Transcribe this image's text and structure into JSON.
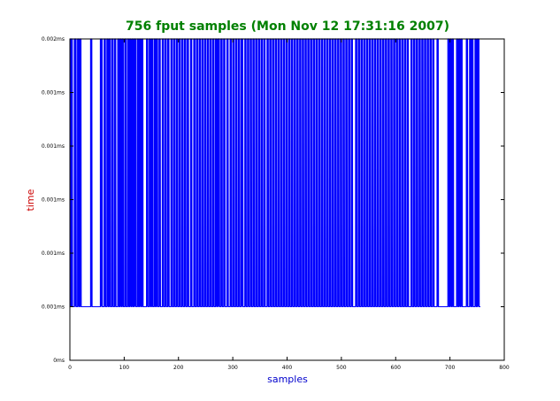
{
  "chart_data": {
    "type": "line",
    "title": "756 fput samples (Mon Nov 12 17:31:16 2007)",
    "xlabel": "samples",
    "ylabel": "time",
    "xlim": [
      0,
      800
    ],
    "ylim": [
      0,
      6
    ],
    "x_ticks": [
      0,
      100,
      200,
      300,
      400,
      500,
      600,
      700,
      800
    ],
    "x_tick_labels": [
      "0",
      "100",
      "200",
      "300",
      "400",
      "500",
      "600",
      "700",
      "800"
    ],
    "y_ticks": [
      0,
      1,
      2,
      3,
      4,
      5,
      6
    ],
    "y_tick_labels": [
      "0ms",
      "0.001ms",
      "0.001ms",
      "0.001ms",
      "0.001ms",
      "0.001ms",
      "0.002ms"
    ],
    "grid": false,
    "series": [
      {
        "x_start": 0,
        "x_end": 756,
        "values_high": 6,
        "values_low": 1,
        "high_runs": [
          [
            0,
            4
          ],
          [
            8,
            11
          ],
          [
            14,
            16
          ],
          [
            18,
            20
          ],
          [
            38,
            40
          ],
          [
            56,
            59
          ],
          [
            63,
            65
          ],
          [
            68,
            70
          ],
          [
            72,
            74
          ],
          [
            77,
            79
          ],
          [
            82,
            84
          ],
          [
            88,
            90
          ],
          [
            92,
            94
          ],
          [
            96,
            98
          ],
          [
            101,
            103
          ],
          [
            106,
            108
          ],
          [
            110,
            112
          ],
          [
            114,
            116
          ],
          [
            118,
            121
          ],
          [
            124,
            126
          ],
          [
            128,
            130
          ],
          [
            132,
            134
          ],
          [
            141,
            143
          ],
          [
            146,
            148
          ],
          [
            150,
            152
          ],
          [
            155,
            157
          ],
          [
            159,
            161
          ],
          [
            164,
            166
          ],
          [
            170,
            172
          ],
          [
            175,
            177
          ],
          [
            180,
            182
          ],
          [
            186,
            188
          ],
          [
            191,
            193
          ],
          [
            196,
            198
          ],
          [
            201,
            203
          ],
          [
            206,
            208
          ],
          [
            211,
            213
          ],
          [
            216,
            218
          ],
          [
            222,
            224
          ],
          [
            228,
            230
          ],
          [
            233,
            235
          ],
          [
            238,
            240
          ],
          [
            243,
            245
          ],
          [
            248,
            250
          ],
          [
            253,
            255
          ],
          [
            258,
            260
          ],
          [
            263,
            265
          ],
          [
            268,
            270
          ],
          [
            272,
            275
          ],
          [
            278,
            280
          ],
          [
            283,
            285
          ],
          [
            289,
            291
          ],
          [
            295,
            297
          ],
          [
            300,
            302
          ],
          [
            305,
            307
          ],
          [
            310,
            312
          ],
          [
            315,
            318
          ],
          [
            322,
            324
          ],
          [
            327,
            329
          ],
          [
            332,
            334
          ],
          [
            337,
            339
          ],
          [
            342,
            344
          ],
          [
            347,
            349
          ],
          [
            352,
            354
          ],
          [
            357,
            359
          ],
          [
            363,
            365
          ],
          [
            368,
            370
          ],
          [
            373,
            375
          ],
          [
            378,
            380
          ],
          [
            383,
            385
          ],
          [
            388,
            390
          ],
          [
            393,
            395
          ],
          [
            398,
            400
          ],
          [
            403,
            405
          ],
          [
            408,
            410
          ],
          [
            413,
            415
          ],
          [
            418,
            420
          ],
          [
            423,
            425
          ],
          [
            428,
            430
          ],
          [
            433,
            435
          ],
          [
            438,
            440
          ],
          [
            443,
            445
          ],
          [
            448,
            450
          ],
          [
            453,
            455
          ],
          [
            458,
            460
          ],
          [
            463,
            465
          ],
          [
            468,
            470
          ],
          [
            473,
            475
          ],
          [
            478,
            480
          ],
          [
            483,
            485
          ],
          [
            488,
            490
          ],
          [
            493,
            495
          ],
          [
            498,
            500
          ],
          [
            503,
            505
          ],
          [
            508,
            510
          ],
          [
            513,
            515
          ],
          [
            518,
            520
          ],
          [
            526,
            528
          ],
          [
            531,
            533
          ],
          [
            536,
            538
          ],
          [
            541,
            543
          ],
          [
            546,
            548
          ],
          [
            551,
            553
          ],
          [
            556,
            558
          ],
          [
            561,
            563
          ],
          [
            566,
            568
          ],
          [
            571,
            573
          ],
          [
            576,
            578
          ],
          [
            581,
            583
          ],
          [
            586,
            588
          ],
          [
            591,
            593
          ],
          [
            596,
            598
          ],
          [
            601,
            603
          ],
          [
            606,
            608
          ],
          [
            611,
            613
          ],
          [
            616,
            618
          ],
          [
            621,
            623
          ],
          [
            628,
            630
          ],
          [
            633,
            635
          ],
          [
            638,
            640
          ],
          [
            643,
            645
          ],
          [
            648,
            650
          ],
          [
            653,
            655
          ],
          [
            658,
            660
          ],
          [
            663,
            665
          ],
          [
            668,
            670
          ],
          [
            676,
            678
          ],
          [
            696,
            698
          ],
          [
            700,
            702
          ],
          [
            704,
            706
          ],
          [
            712,
            714
          ],
          [
            716,
            718
          ],
          [
            720,
            722
          ],
          [
            730,
            732
          ],
          [
            736,
            738
          ],
          [
            740,
            742
          ],
          [
            746,
            748
          ],
          [
            750,
            753
          ]
        ],
        "color": "#0000ff"
      }
    ],
    "colors": {
      "title": "#008000",
      "xlabel": "#0000cc",
      "ylabel": "#cc0000",
      "axes": "#000000",
      "series": "#0000ff"
    }
  }
}
